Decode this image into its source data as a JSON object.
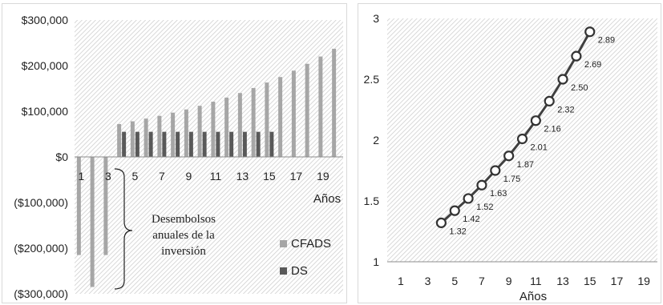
{
  "chart_data": [
    {
      "type": "bar",
      "xlabel": "Años",
      "ylim": [
        -300000,
        300000
      ],
      "y_ticks": [
        "$300,000",
        "$200,000",
        "$100,000",
        "$0",
        "($100,000)",
        "($200,000)",
        "($300,000)"
      ],
      "x_tick_labels": [
        "1",
        "3",
        "5",
        "7",
        "9",
        "11",
        "13",
        "15",
        "17",
        "19"
      ],
      "x_tick_values": [
        1,
        3,
        5,
        7,
        9,
        11,
        13,
        15,
        17,
        19
      ],
      "categories": [
        1,
        2,
        3,
        4,
        5,
        6,
        7,
        8,
        9,
        10,
        11,
        12,
        13,
        14,
        15,
        16,
        17,
        18,
        19,
        20
      ],
      "series": [
        {
          "name": "CFADS",
          "color": "#a6a6a6",
          "values": [
            -215000,
            -285000,
            -215000,
            72000,
            78000,
            84000,
            90000,
            97000,
            104000,
            112000,
            121000,
            130000,
            140000,
            151000,
            163000,
            175000,
            189000,
            204000,
            220000,
            237000
          ]
        },
        {
          "name": "DS",
          "color": "#595959",
          "values": [
            null,
            null,
            null,
            55000,
            55000,
            55000,
            55000,
            55000,
            55000,
            55000,
            55000,
            55000,
            55000,
            55000,
            55000,
            null,
            null,
            null,
            null,
            null
          ]
        }
      ],
      "annotation": [
        "Desembolsos",
        "anuales de la",
        "inversión"
      ],
      "grid": false,
      "plot_background": "diagonal hatch",
      "legend_position": "bottom-right"
    },
    {
      "type": "line",
      "xlabel": "Años",
      "xlim": [
        0,
        20
      ],
      "ylim": [
        1,
        3
      ],
      "y_ticks": [
        "3",
        "2.5",
        "2",
        "1.5",
        "1"
      ],
      "y_tick_values": [
        3,
        2.5,
        2,
        1.5,
        1
      ],
      "x_tick_labels": [
        "1",
        "3",
        "5",
        "7",
        "9",
        "11",
        "13",
        "15",
        "17",
        "19"
      ],
      "x_tick_values": [
        1,
        3,
        5,
        7,
        9,
        11,
        13,
        15,
        17,
        19
      ],
      "x": [
        4,
        5,
        6,
        7,
        8,
        9,
        10,
        11,
        12,
        13,
        14,
        15
      ],
      "y": [
        1.32,
        1.42,
        1.52,
        1.63,
        1.75,
        1.87,
        2.01,
        2.16,
        2.32,
        2.5,
        2.69,
        2.89
      ],
      "data_labels": [
        "1.32",
        "1.42",
        "1.52",
        "1.63",
        "1.75",
        "1.87",
        "2.01",
        "2.16",
        "2.32",
        "2.50",
        "2.69",
        "2.89"
      ],
      "line_color": "#404040",
      "grid": false,
      "plot_background": "diagonal hatch"
    }
  ]
}
